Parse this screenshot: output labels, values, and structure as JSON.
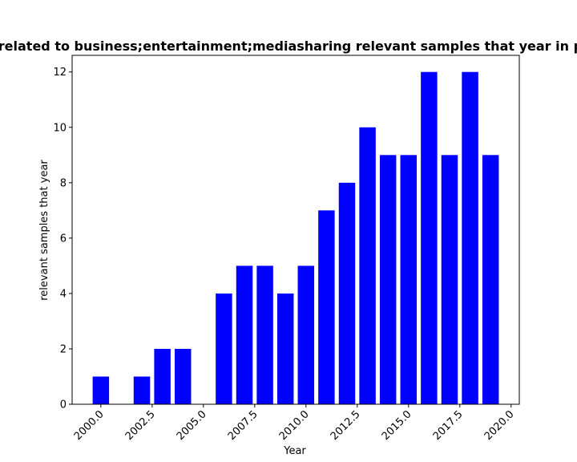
{
  "chart_data": {
    "type": "bar",
    "title": "of related to business;entertainment;mediasharing relevant samples that year in per",
    "xlabel": "Year",
    "ylabel": "relevant samples that year",
    "bar_color": "#0000ff",
    "x": [
      2000,
      2002,
      2003,
      2004,
      2006,
      2007,
      2008,
      2009,
      2010,
      2011,
      2012,
      2013,
      2014,
      2015,
      2016,
      2017,
      2018,
      2019
    ],
    "values": [
      1,
      1,
      2,
      2,
      4,
      5,
      5,
      4,
      5,
      7,
      8,
      10,
      9,
      9,
      12,
      9,
      12,
      9
    ],
    "xlim": [
      1998.6,
      2020.4
    ],
    "ylim": [
      0,
      12.6
    ],
    "xticks": [
      2000.0,
      2002.5,
      2005.0,
      2007.5,
      2010.0,
      2012.5,
      2015.0,
      2017.5,
      2020.0
    ],
    "xtick_labels": [
      "2000.0",
      "2002.5",
      "2005.0",
      "2007.5",
      "2010.0",
      "2012.5",
      "2015.0",
      "2017.5",
      "2020.0"
    ],
    "yticks": [
      0,
      2,
      4,
      6,
      8,
      10,
      12
    ],
    "ytick_labels": [
      "0",
      "2",
      "4",
      "6",
      "8",
      "10",
      "12"
    ],
    "grid": false,
    "legend": "none"
  }
}
